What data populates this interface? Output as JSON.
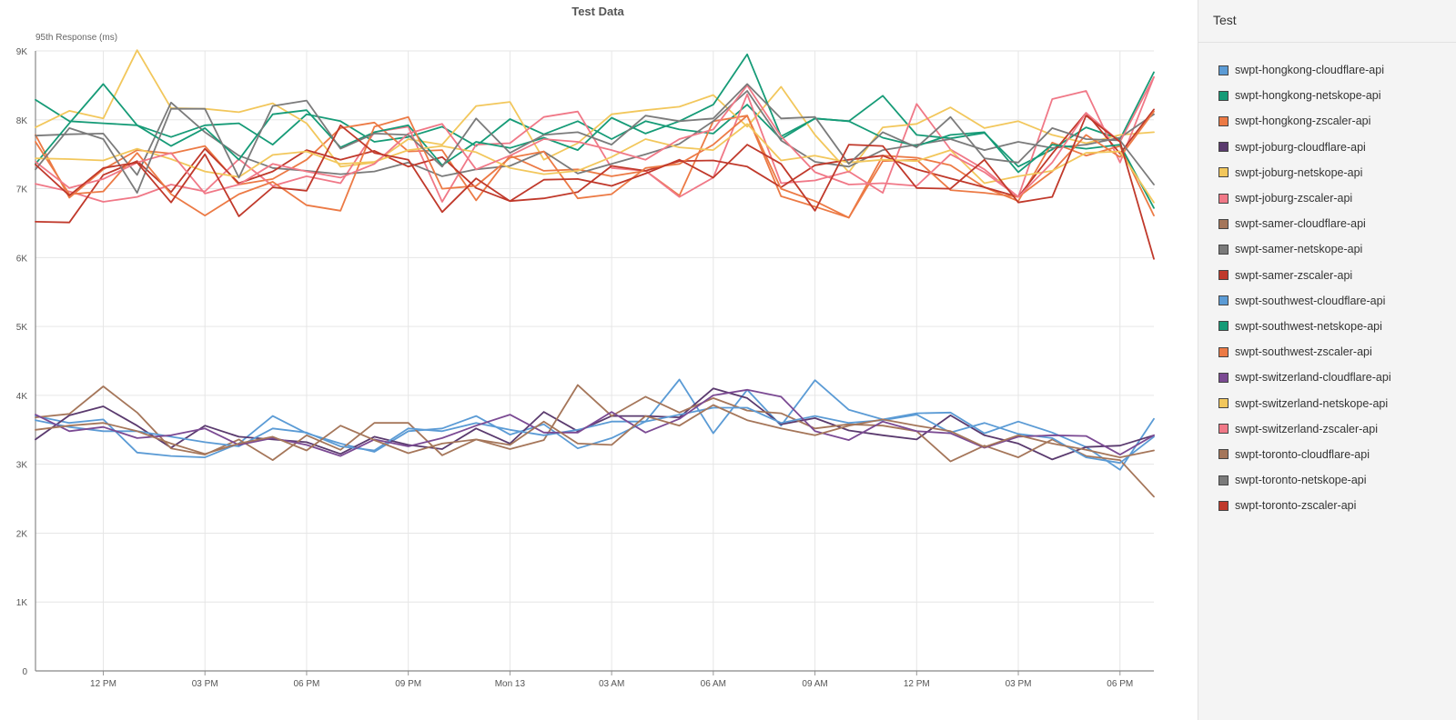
{
  "panel": {
    "title": "Test"
  },
  "chart_data": {
    "type": "line",
    "title": "Test Data",
    "ylabel": "95th Response (ms)",
    "xlabel": "",
    "ylim": [
      0,
      9000
    ],
    "xlim": [
      0,
      33
    ],
    "yticks": [
      0,
      1000,
      2000,
      3000,
      4000,
      5000,
      6000,
      7000,
      8000,
      9000
    ],
    "yticklabels": [
      "0",
      "1K",
      "2K",
      "3K",
      "4K",
      "5K",
      "6K",
      "7K",
      "8K",
      "9K"
    ],
    "xticks": [
      2,
      5,
      8,
      11,
      14,
      17,
      20,
      23,
      26,
      29,
      32
    ],
    "xticklabels": [
      "12 PM",
      "03 PM",
      "06 PM",
      "09 PM",
      "Mon 13",
      "03 AM",
      "06 AM",
      "09 AM",
      "12 PM",
      "03 PM",
      "06 PM"
    ],
    "grid": true,
    "legend_position": "right",
    "series": [
      {
        "name": "swpt-hongkong-cloudflare-api",
        "color": "#5b9bd5",
        "values": [
          3700,
          3600,
          3650,
          3170,
          3120,
          3100,
          3300,
          3700,
          3450,
          3300,
          3180,
          3480,
          3520,
          3700,
          3430,
          3580,
          3230,
          3380,
          3620,
          4230,
          3450,
          4080,
          3560,
          4220,
          3790,
          3650,
          3740,
          3750,
          3450,
          3620,
          3460,
          3250,
          2920,
          3660
        ]
      },
      {
        "name": "swpt-hongkong-netskope-api",
        "color": "#169b77",
        "values": [
          8290,
          7980,
          7950,
          7920,
          7750,
          7920,
          7950,
          7640,
          8080,
          7980,
          7680,
          7750,
          7900,
          7620,
          8010,
          7790,
          7980,
          7720,
          7980,
          7860,
          7800,
          8220,
          7720,
          8020,
          7980,
          8350,
          7780,
          7730,
          7810,
          7320,
          7570,
          7890,
          7720,
          8690
        ]
      },
      {
        "name": "swpt-hongkong-zscaler-api",
        "color": "#ec7a45",
        "values": [
          7780,
          6870,
          7280,
          7560,
          7510,
          7620,
          7060,
          7140,
          7420,
          7880,
          7960,
          7540,
          7560,
          6830,
          7480,
          7260,
          7280,
          7180,
          7260,
          6900,
          7980,
          8060,
          6890,
          6740,
          6580,
          7480,
          7450,
          7340,
          7020,
          6820,
          7670,
          7480,
          7620,
          6610
        ]
      },
      {
        "name": "swpt-joburg-cloudflare-api",
        "color": "#5a3a6e",
        "values": [
          3360,
          3710,
          3840,
          3560,
          3240,
          3560,
          3400,
          3360,
          3320,
          3150,
          3400,
          3280,
          3220,
          3520,
          3300,
          3760,
          3480,
          3700,
          3700,
          3680,
          4100,
          3960,
          3580,
          3670,
          3490,
          3420,
          3360,
          3710,
          3420,
          3300,
          3070,
          3250,
          3270,
          3420
        ]
      },
      {
        "name": "swpt-joburg-netskope-api",
        "color": "#f2c75c",
        "values": [
          7890,
          8130,
          8020,
          9010,
          8170,
          8160,
          8110,
          8240,
          7950,
          7320,
          7380,
          7720,
          7640,
          8200,
          8260,
          7420,
          7660,
          8080,
          8140,
          8190,
          8360,
          7900,
          8480,
          7780,
          7240,
          7890,
          7940,
          8180,
          7880,
          7980,
          7780,
          7660,
          7780,
          7820
        ]
      },
      {
        "name": "swpt-joburg-zscaler-api",
        "color": "#f07887",
        "values": [
          7070,
          6960,
          6810,
          6880,
          7060,
          6960,
          7430,
          7040,
          7180,
          7080,
          7820,
          7900,
          6810,
          7640,
          7660,
          8040,
          8120,
          7300,
          7260,
          6880,
          7160,
          8370,
          7080,
          7120,
          7250,
          6940,
          8230,
          7570,
          7280,
          6880,
          8300,
          8420,
          7380,
          8620
        ]
      },
      {
        "name": "swpt-samer-cloudflare-api",
        "color": "#a5765a",
        "values": [
          3680,
          3730,
          4130,
          3750,
          3230,
          3140,
          3360,
          3060,
          3420,
          3210,
          3600,
          3600,
          3130,
          3360,
          3220,
          3350,
          4150,
          3700,
          3980,
          3750,
          3960,
          3780,
          3740,
          3520,
          3580,
          3560,
          3480,
          3040,
          3270,
          3100,
          3360,
          3120,
          3060,
          2530
        ]
      },
      {
        "name": "swpt-samer-netskope-api",
        "color": "#7b7b7b",
        "values": [
          7770,
          7790,
          7800,
          7200,
          8250,
          7820,
          7480,
          7300,
          7260,
          7210,
          7250,
          7380,
          7180,
          7280,
          7330,
          7540,
          7220,
          7360,
          7500,
          7650,
          7980,
          8420,
          7700,
          7390,
          7320,
          7560,
          7640,
          7720,
          7560,
          7680,
          7590,
          7640,
          7740,
          8080
        ]
      },
      {
        "name": "swpt-samer-zscaler-api",
        "color": "#c0392b",
        "values": [
          6520,
          6510,
          7200,
          7400,
          6950,
          7580,
          7080,
          7250,
          7560,
          7420,
          7550,
          7320,
          7460,
          7010,
          6820,
          6860,
          6950,
          7330,
          7260,
          7400,
          7410,
          7320,
          7020,
          7340,
          7420,
          7480,
          7280,
          7150,
          7020,
          6880,
          7510,
          8100,
          7510,
          8150
        ]
      },
      {
        "name": "swpt-southwest-cloudflare-api",
        "color": "#5b9bd5",
        "values": [
          3640,
          3540,
          3480,
          3480,
          3400,
          3320,
          3260,
          3520,
          3460,
          3260,
          3200,
          3520,
          3480,
          3600,
          3500,
          3420,
          3500,
          3620,
          3620,
          3720,
          3820,
          3820,
          3600,
          3700,
          3600,
          3640,
          3720,
          3460,
          3600,
          3440,
          3380,
          3100,
          3020,
          3400
        ]
      },
      {
        "name": "swpt-southwest-netskope-api",
        "color": "#169b77",
        "values": [
          7360,
          7950,
          8520,
          7920,
          7620,
          7880,
          7420,
          8080,
          8140,
          7600,
          7820,
          7920,
          7340,
          7680,
          7590,
          7740,
          7560,
          8030,
          7800,
          7980,
          8220,
          8950,
          7760,
          8020,
          7980,
          7740,
          7620,
          7780,
          7820,
          7240,
          7640,
          7580,
          7640,
          6720
        ]
      },
      {
        "name": "swpt-southwest-zscaler-api",
        "color": "#ec7a45",
        "values": [
          7680,
          6920,
          6960,
          7520,
          6920,
          6610,
          6920,
          7100,
          6760,
          6680,
          7900,
          8040,
          7000,
          7040,
          7450,
          7540,
          6860,
          6920,
          7300,
          7360,
          7640,
          8060,
          7000,
          6820,
          6580,
          7400,
          7420,
          6980,
          6940,
          6880,
          7250,
          7780,
          7460,
          8120
        ]
      },
      {
        "name": "swpt-switzerland-cloudflare-api",
        "color": "#7b4a93",
        "values": [
          3720,
          3480,
          3540,
          3380,
          3420,
          3520,
          3280,
          3380,
          3280,
          3120,
          3360,
          3260,
          3380,
          3560,
          3720,
          3460,
          3460,
          3760,
          3460,
          3660,
          4000,
          4080,
          3980,
          3480,
          3350,
          3620,
          3480,
          3450,
          3240,
          3400,
          3420,
          3410,
          3140,
          3420
        ]
      },
      {
        "name": "swpt-switzerland-netskope-api",
        "color": "#f2c75c",
        "values": [
          7440,
          7430,
          7410,
          7580,
          7430,
          7250,
          7170,
          7490,
          7540,
          7360,
          7390,
          7560,
          7620,
          7530,
          7300,
          7210,
          7260,
          7460,
          7720,
          7600,
          7560,
          7940,
          7410,
          7480,
          7380,
          7420,
          7400,
          7560,
          7080,
          7180,
          7260,
          7520,
          7540,
          6800
        ]
      },
      {
        "name": "swpt-switzerland-zscaler-api",
        "color": "#f07887",
        "values": [
          7390,
          7010,
          7140,
          7380,
          7520,
          6930,
          7060,
          7360,
          7250,
          7160,
          7360,
          7800,
          7940,
          7280,
          7480,
          7720,
          7680,
          7560,
          7420,
          7720,
          7860,
          8500,
          7760,
          7240,
          7060,
          7080,
          7040,
          7500,
          7240,
          6880,
          7380,
          8100,
          7680,
          8620
        ]
      },
      {
        "name": "swpt-toronto-cloudflare-api",
        "color": "#a5765a",
        "values": [
          3500,
          3560,
          3600,
          3480,
          3300,
          3150,
          3300,
          3400,
          3200,
          3560,
          3350,
          3160,
          3300,
          3360,
          3280,
          3620,
          3300,
          3280,
          3700,
          3560,
          3860,
          3640,
          3520,
          3420,
          3560,
          3650,
          3560,
          3480,
          3250,
          3420,
          3300,
          3210,
          3100,
          3200
        ]
      },
      {
        "name": "swpt-toronto-netskope-api",
        "color": "#7b7b7b",
        "values": [
          7280,
          7880,
          7720,
          6940,
          8160,
          8160,
          7160,
          8200,
          8280,
          7580,
          7800,
          7780,
          7320,
          8020,
          7520,
          7780,
          7820,
          7640,
          8060,
          7980,
          8020,
          8520,
          8020,
          8040,
          7360,
          7820,
          7600,
          8040,
          7440,
          7380,
          7880,
          7720,
          7700,
          7060
        ]
      },
      {
        "name": "swpt-toronto-zscaler-api",
        "color": "#c0392b",
        "values": [
          7350,
          6900,
          7300,
          7380,
          6800,
          7500,
          6600,
          7020,
          6970,
          7920,
          7520,
          7420,
          6660,
          7150,
          6820,
          7130,
          7140,
          7040,
          7220,
          7420,
          7160,
          7640,
          7360,
          6680,
          7640,
          7620,
          7010,
          7000,
          7420,
          6800,
          6880,
          8060,
          7680,
          5980
        ]
      }
    ]
  }
}
